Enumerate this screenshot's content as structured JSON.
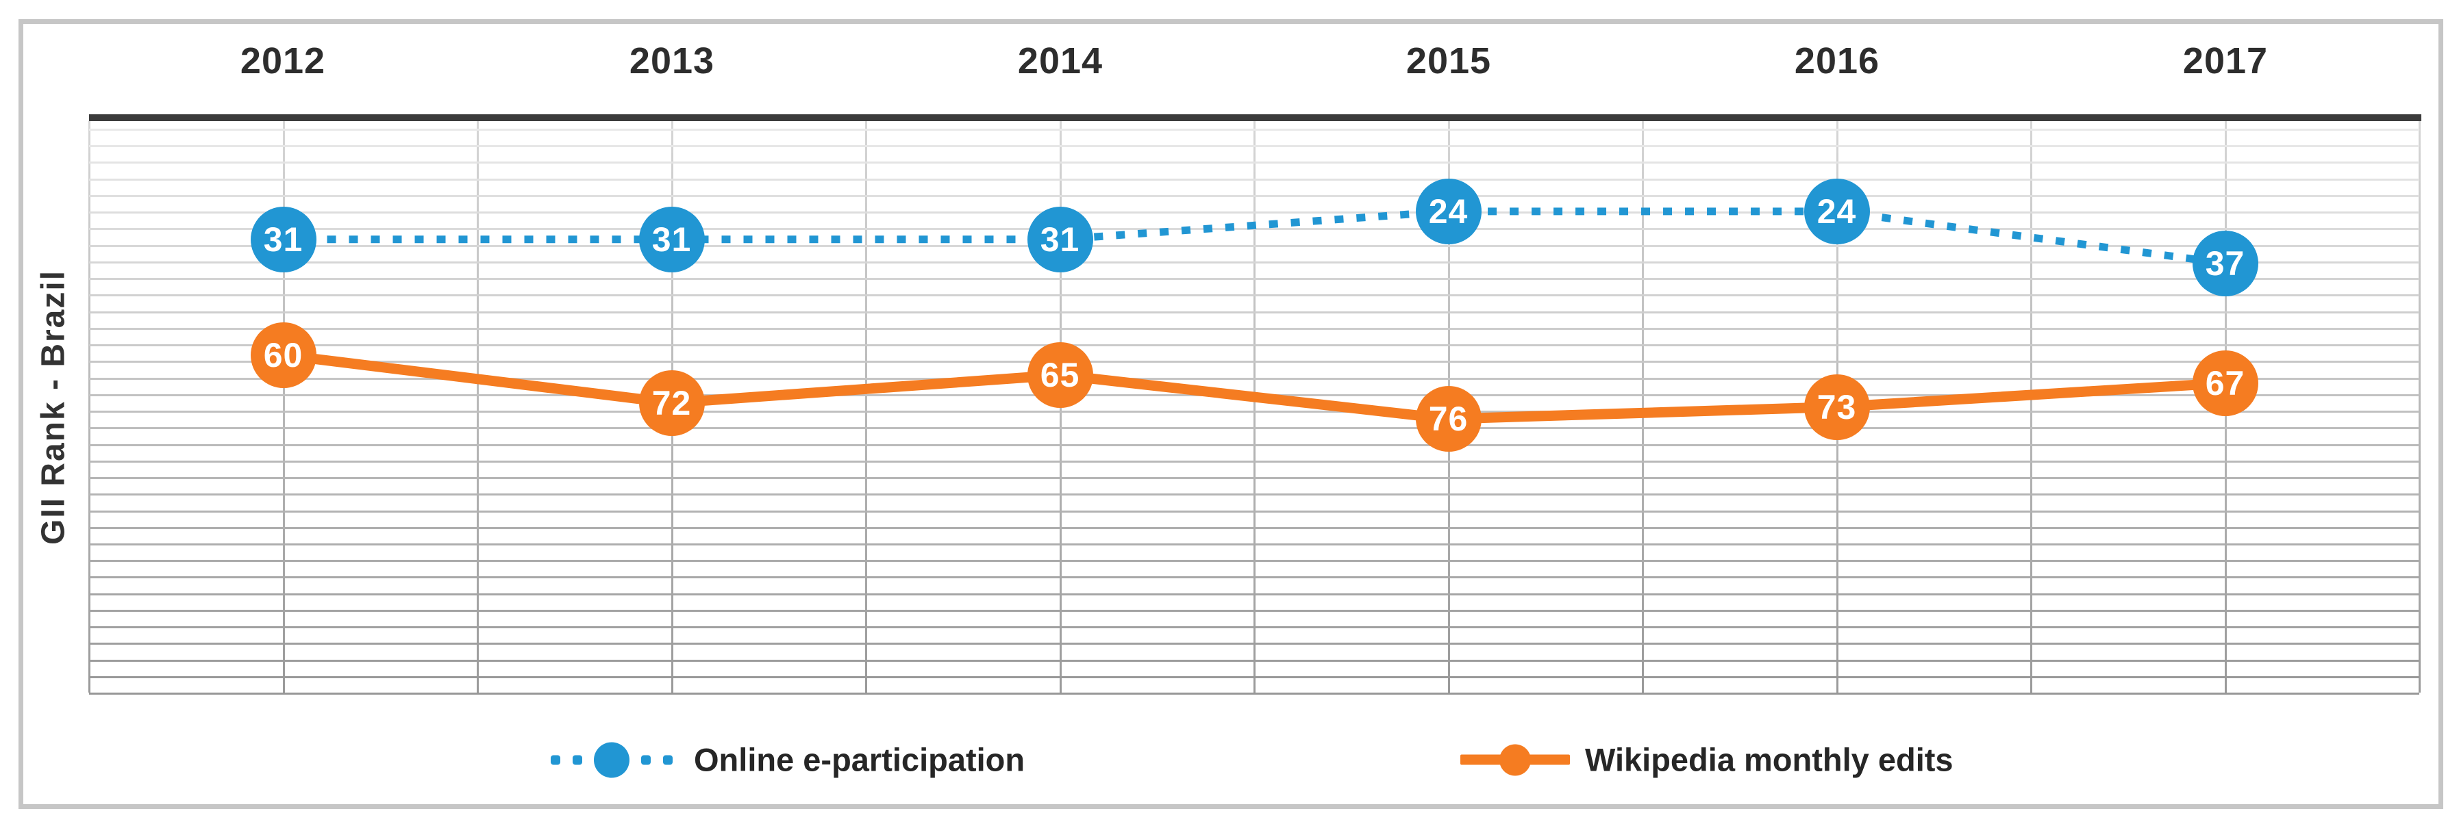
{
  "figure": {
    "y_axis_label": "GII Rank - Brazil"
  },
  "chart_data": {
    "type": "line",
    "title": "",
    "xlabel": "",
    "ylabel": "GII Rank - Brazil",
    "categories": [
      "2012",
      "2013",
      "2014",
      "2015",
      "2016",
      "2017"
    ],
    "series": [
      {
        "name": "Online e-participation",
        "style": "dotted",
        "color": "#2196d3",
        "values": [
          31,
          31,
          31,
          24,
          24,
          37
        ]
      },
      {
        "name": "Wikipedia monthly edits",
        "style": "solid",
        "color": "#f57c21",
        "values": [
          60,
          72,
          65,
          76,
          73,
          67
        ]
      }
    ],
    "y_axis_inverted": true,
    "ylim": [
      0,
      145
    ],
    "grid": true,
    "data_labels": true,
    "legend_position": "bottom"
  },
  "colors": {
    "series_blue": "#2196d3",
    "series_orange": "#f57c21",
    "top_axis_bar": "#3b3b3b",
    "frame_border": "#c6c6c6",
    "year_label_text": "#2d2d2d",
    "gridline_top": "#e9e9e9",
    "gridline_bottom": "#979797"
  }
}
